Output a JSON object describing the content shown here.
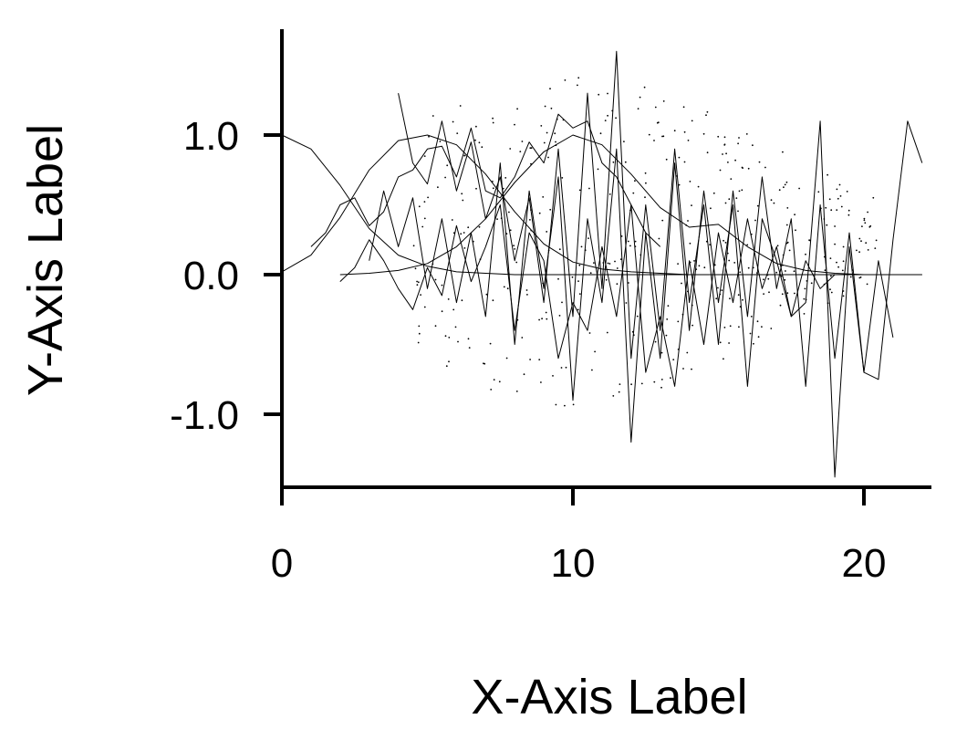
{
  "chart_data": {
    "type": "line",
    "title": "",
    "xlabel": "X-Axis Label",
    "ylabel": "Y-Axis Label",
    "xlim": [
      0,
      22.5
    ],
    "ylim": [
      -1.5,
      1.75
    ],
    "grid": false,
    "legend": "none",
    "xticks": [
      {
        "value": 0,
        "label": "0"
      },
      {
        "value": 10,
        "label": "10"
      },
      {
        "value": 20,
        "label": "20"
      }
    ],
    "yticks": [
      {
        "value": -1.0,
        "label": "-1.0"
      },
      {
        "value": 0.0,
        "label": "0.0"
      },
      {
        "value": 1.0,
        "label": "1.0"
      }
    ],
    "line_color": "#000000",
    "series": [
      {
        "x": [
          0,
          1,
          2,
          3,
          4,
          5,
          6,
          7,
          8,
          9,
          10,
          11,
          12,
          13,
          14,
          15,
          16,
          17,
          18,
          19,
          20,
          21,
          22
        ],
        "y": [
          1.0,
          0.9,
          0.64,
          0.33,
          0.14,
          0.06,
          0.02,
          0.01,
          0.0,
          0.0,
          0.0,
          0.0,
          0.0,
          0.0,
          0.0,
          0.0,
          0.0,
          0.0,
          0.0,
          0.0,
          0.0,
          0.0,
          0.0
        ]
      },
      {
        "x": [
          0,
          1,
          2,
          3,
          4,
          5,
          6,
          7,
          8,
          9,
          10,
          11,
          12,
          13,
          14,
          15,
          16,
          17,
          18,
          19,
          20
        ],
        "y": [
          0.02,
          0.14,
          0.41,
          0.75,
          0.96,
          1.0,
          0.93,
          0.72,
          0.45,
          0.22,
          0.09,
          0.04,
          0.02,
          0.01,
          0.0,
          0.0,
          0.0,
          0.0,
          0.0,
          0.0,
          0.0
        ]
      },
      {
        "x": [
          2,
          3,
          4,
          5,
          6,
          7,
          8,
          9,
          10,
          11,
          12,
          13,
          14,
          15,
          16,
          17,
          18,
          19,
          20,
          21,
          22
        ],
        "y": [
          0.0,
          0.01,
          0.03,
          0.08,
          0.2,
          0.4,
          0.66,
          0.88,
          1.0,
          0.93,
          0.72,
          0.48,
          0.34,
          0.36,
          0.2,
          0.08,
          0.03,
          0.01,
          0.0,
          0.0,
          0.0
        ]
      },
      {
        "x": [
          1,
          1.5,
          2,
          2.5,
          3,
          3.5,
          4,
          4.5,
          5,
          5.5,
          6,
          6.5,
          7,
          7.5,
          8,
          8.5,
          9,
          9.5,
          10,
          10.5,
          11,
          11.5,
          12,
          12.5,
          13
        ],
        "y": [
          0.2,
          0.3,
          0.5,
          0.55,
          0.35,
          0.45,
          0.7,
          0.75,
          0.9,
          0.92,
          0.7,
          1.05,
          0.6,
          0.55,
          0.7,
          0.95,
          0.8,
          1.15,
          1.05,
          1.1,
          0.8,
          0.7,
          0.5,
          0.3,
          0.2
        ]
      },
      {
        "x": [
          4,
          4.5,
          5,
          5.5,
          6,
          6.5,
          7,
          7.5,
          8,
          8.5,
          9,
          9.5,
          10,
          10.5,
          11,
          11.5,
          12,
          12.5,
          13,
          13.5,
          14,
          14.5,
          15,
          15.5,
          16,
          16.5,
          17,
          17.5,
          18,
          18.5,
          19,
          19.5,
          20,
          20.5,
          21
        ],
        "y": [
          1.3,
          0.8,
          0.65,
          1.1,
          0.6,
          0.95,
          0.4,
          0.7,
          0.1,
          0.55,
          -0.2,
          0.9,
          -0.3,
          1.3,
          -0.1,
          1.6,
          -0.6,
          0.5,
          -0.4,
          0.9,
          -0.2,
          0.5,
          -0.5,
          0.6,
          -0.3,
          0.7,
          -0.1,
          0.4,
          -0.8,
          0.5,
          -0.6,
          0.3,
          -0.7,
          0.1,
          -0.45
        ]
      },
      {
        "x": [
          3,
          3.5,
          4,
          4.5,
          5,
          5.5,
          6,
          6.5,
          7,
          7.5,
          8,
          8.5,
          9,
          9.5,
          10,
          10.5,
          11,
          11.5,
          12,
          12.5,
          13,
          13.5,
          14,
          14.5,
          15,
          15.5,
          16,
          16.5,
          17,
          17.5,
          18,
          18.5,
          19,
          19.5,
          20,
          20.5,
          21,
          21.5,
          22
        ],
        "y": [
          0.1,
          0.6,
          0.2,
          0.55,
          -0.1,
          0.4,
          -0.2,
          0.3,
          -0.3,
          0.8,
          -0.5,
          0.6,
          -0.1,
          0.7,
          -0.9,
          0.4,
          -0.2,
          0.9,
          -1.2,
          0.3,
          -0.6,
          0.8,
          -0.4,
          0.6,
          -0.2,
          0.5,
          -0.8,
          0.4,
          0.1,
          -0.3,
          -0.2,
          1.1,
          -1.45,
          0.2,
          -0.7,
          -0.75,
          0.25,
          1.1,
          0.8
        ]
      },
      {
        "x": [
          2,
          2.5,
          3,
          3.5,
          4,
          4.5,
          5,
          5.5,
          6,
          6.5,
          7,
          7.5,
          8,
          8.5,
          9,
          9.5,
          10,
          10.5,
          11,
          11.5,
          12,
          12.5,
          13,
          13.5,
          14,
          14.5,
          15,
          15.5,
          16,
          16.5,
          17,
          17.5,
          18,
          18.5,
          19
        ],
        "y": [
          -0.05,
          0.05,
          0.25,
          0.1,
          -0.1,
          -0.25,
          0.05,
          -0.15,
          0.35,
          -0.05,
          0.2,
          0.5,
          -0.4,
          0.3,
          0.1,
          -0.6,
          -0.2,
          -0.4,
          0.2,
          -0.3,
          0.5,
          -0.7,
          -0.3,
          -0.8,
          0.1,
          -0.5,
          0.3,
          -0.2,
          0.4,
          -0.1,
          0.2,
          -0.3,
          0.1,
          -0.1,
          0.0
        ]
      }
    ]
  }
}
